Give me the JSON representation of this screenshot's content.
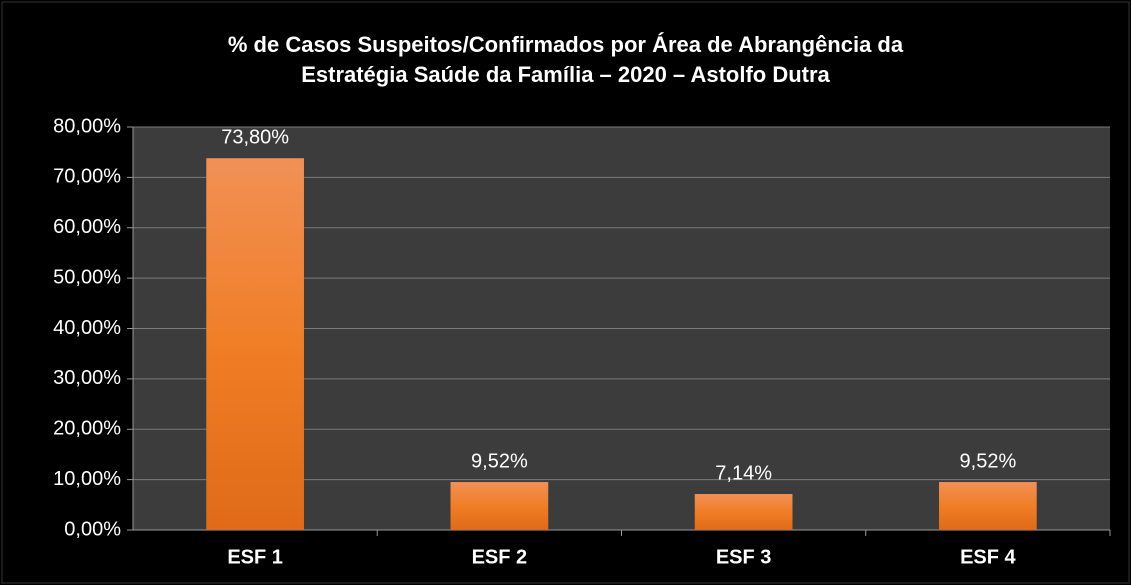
{
  "chart_data": {
    "type": "bar",
    "title": "% de Casos Suspeitos/Confirmados por Área de Abrangência da\nEstratégia Saúde da Família – 2020 – Astolfo Dutra",
    "categories": [
      "ESF 1",
      "ESF 2",
      "ESF 3",
      "ESF 4"
    ],
    "values": [
      73.8,
      9.52,
      7.14,
      9.52
    ],
    "value_labels": [
      "73,80%",
      "9,52%",
      "7,14%",
      "9,52%"
    ],
    "color": "#f07e26",
    "ylim": [
      0,
      80
    ],
    "yticks": [
      {
        "value": 0,
        "label": "0,00%"
      },
      {
        "value": 10,
        "label": "10,00%"
      },
      {
        "value": 20,
        "label": "20,00%"
      },
      {
        "value": 30,
        "label": "30,00%"
      },
      {
        "value": 40,
        "label": "40,00%"
      },
      {
        "value": 50,
        "label": "50,00%"
      },
      {
        "value": 60,
        "label": "60,00%"
      },
      {
        "value": 70,
        "label": "70,00%"
      },
      {
        "value": 80,
        "label": "80,00%"
      }
    ],
    "grid": true
  }
}
